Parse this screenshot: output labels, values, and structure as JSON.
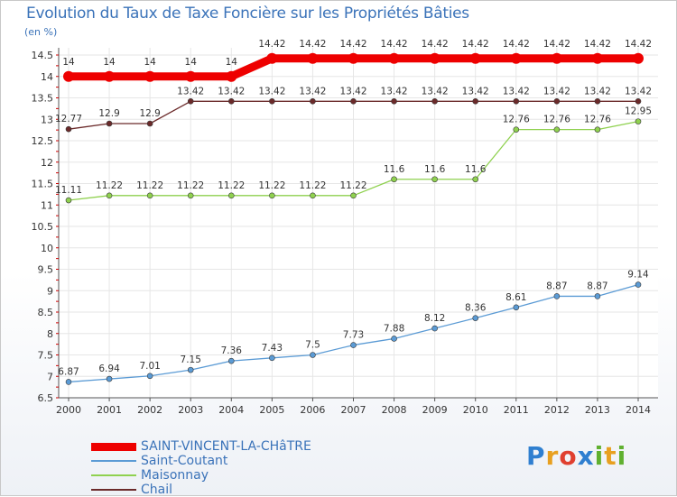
{
  "title": "Evolution du Taux de Taxe Foncière sur les Propriétés Bâties",
  "unit": "(en %)",
  "logo": [
    "P",
    "r",
    "o",
    "x",
    "i",
    "t",
    "i"
  ],
  "logo_colors": [
    "#2f7fd0",
    "#e8a020",
    "#e04030",
    "#2f7fd0",
    "#60b030",
    "#e8a020",
    "#60b030"
  ],
  "chart_data": {
    "type": "line",
    "title": "Evolution du Taux de Taxe Foncière sur les Propriétés Bâties",
    "ylabel": "(en %)",
    "xlabel": "",
    "categories": [
      "2000",
      "2001",
      "2002",
      "2003",
      "2004",
      "2005",
      "2006",
      "2007",
      "2008",
      "2009",
      "2010",
      "2011",
      "2012",
      "2013",
      "2014"
    ],
    "ylim": [
      6.5,
      14.5
    ],
    "yticks": [
      "6.5",
      "7",
      "7.5",
      "8",
      "8.5",
      "9",
      "9.5",
      "10",
      "10.5",
      "11",
      "11.5",
      "12",
      "12.5",
      "13",
      "13.5",
      "14",
      "14.5"
    ],
    "series": [
      {
        "name": "SAINT-VINCENT-LA-CHâTRE",
        "color": "#ee0000",
        "width": "thick",
        "values": [
          14,
          14,
          14,
          14,
          14,
          14.42,
          14.42,
          14.42,
          14.42,
          14.42,
          14.42,
          14.42,
          14.42,
          14.42,
          14.42
        ],
        "labels": [
          "14",
          "14",
          "14",
          "14",
          "14",
          "14.42",
          "14.42",
          "14.42",
          "14.42",
          "14.42",
          "14.42",
          "14.42",
          "14.42",
          "14.42",
          "14.42"
        ]
      },
      {
        "name": "Saint-Coutant",
        "color": "#5b9bd5",
        "width": "thin",
        "values": [
          6.87,
          6.94,
          7.01,
          7.15,
          7.36,
          7.43,
          7.5,
          7.73,
          7.88,
          8.12,
          8.36,
          8.61,
          8.87,
          8.87,
          9.14
        ],
        "labels": [
          "6.87",
          "6.94",
          "7.01",
          "7.15",
          "7.36",
          "7.43",
          "7.5",
          "7.73",
          "7.88",
          "8.12",
          "8.36",
          "8.61",
          "8.87",
          "8.87",
          "9.14"
        ]
      },
      {
        "name": "Maisonnay",
        "color": "#8fd14f",
        "width": "thin",
        "values": [
          11.11,
          11.22,
          11.22,
          11.22,
          11.22,
          11.22,
          11.22,
          11.22,
          11.6,
          11.6,
          11.6,
          12.76,
          12.76,
          12.76,
          12.95
        ],
        "labels": [
          "11.11",
          "11.22",
          "11.22",
          "11.22",
          "11.22",
          "11.22",
          "11.22",
          "11.22",
          "11.6",
          "11.6",
          "11.6",
          "12.76",
          "12.76",
          "12.76",
          "12.95"
        ]
      },
      {
        "name": "Chail",
        "color": "#6b2a2a",
        "width": "thin",
        "values": [
          12.77,
          12.9,
          12.9,
          13.42,
          13.42,
          13.42,
          13.42,
          13.42,
          13.42,
          13.42,
          13.42,
          13.42,
          13.42,
          13.42,
          13.42
        ],
        "labels": [
          "12.77",
          "12.9",
          "12.9",
          "13.42",
          "13.42",
          "13.42",
          "13.42",
          "13.42",
          "13.42",
          "13.42",
          "13.42",
          "13.42",
          "13.42",
          "13.42",
          "13.42"
        ]
      }
    ]
  }
}
